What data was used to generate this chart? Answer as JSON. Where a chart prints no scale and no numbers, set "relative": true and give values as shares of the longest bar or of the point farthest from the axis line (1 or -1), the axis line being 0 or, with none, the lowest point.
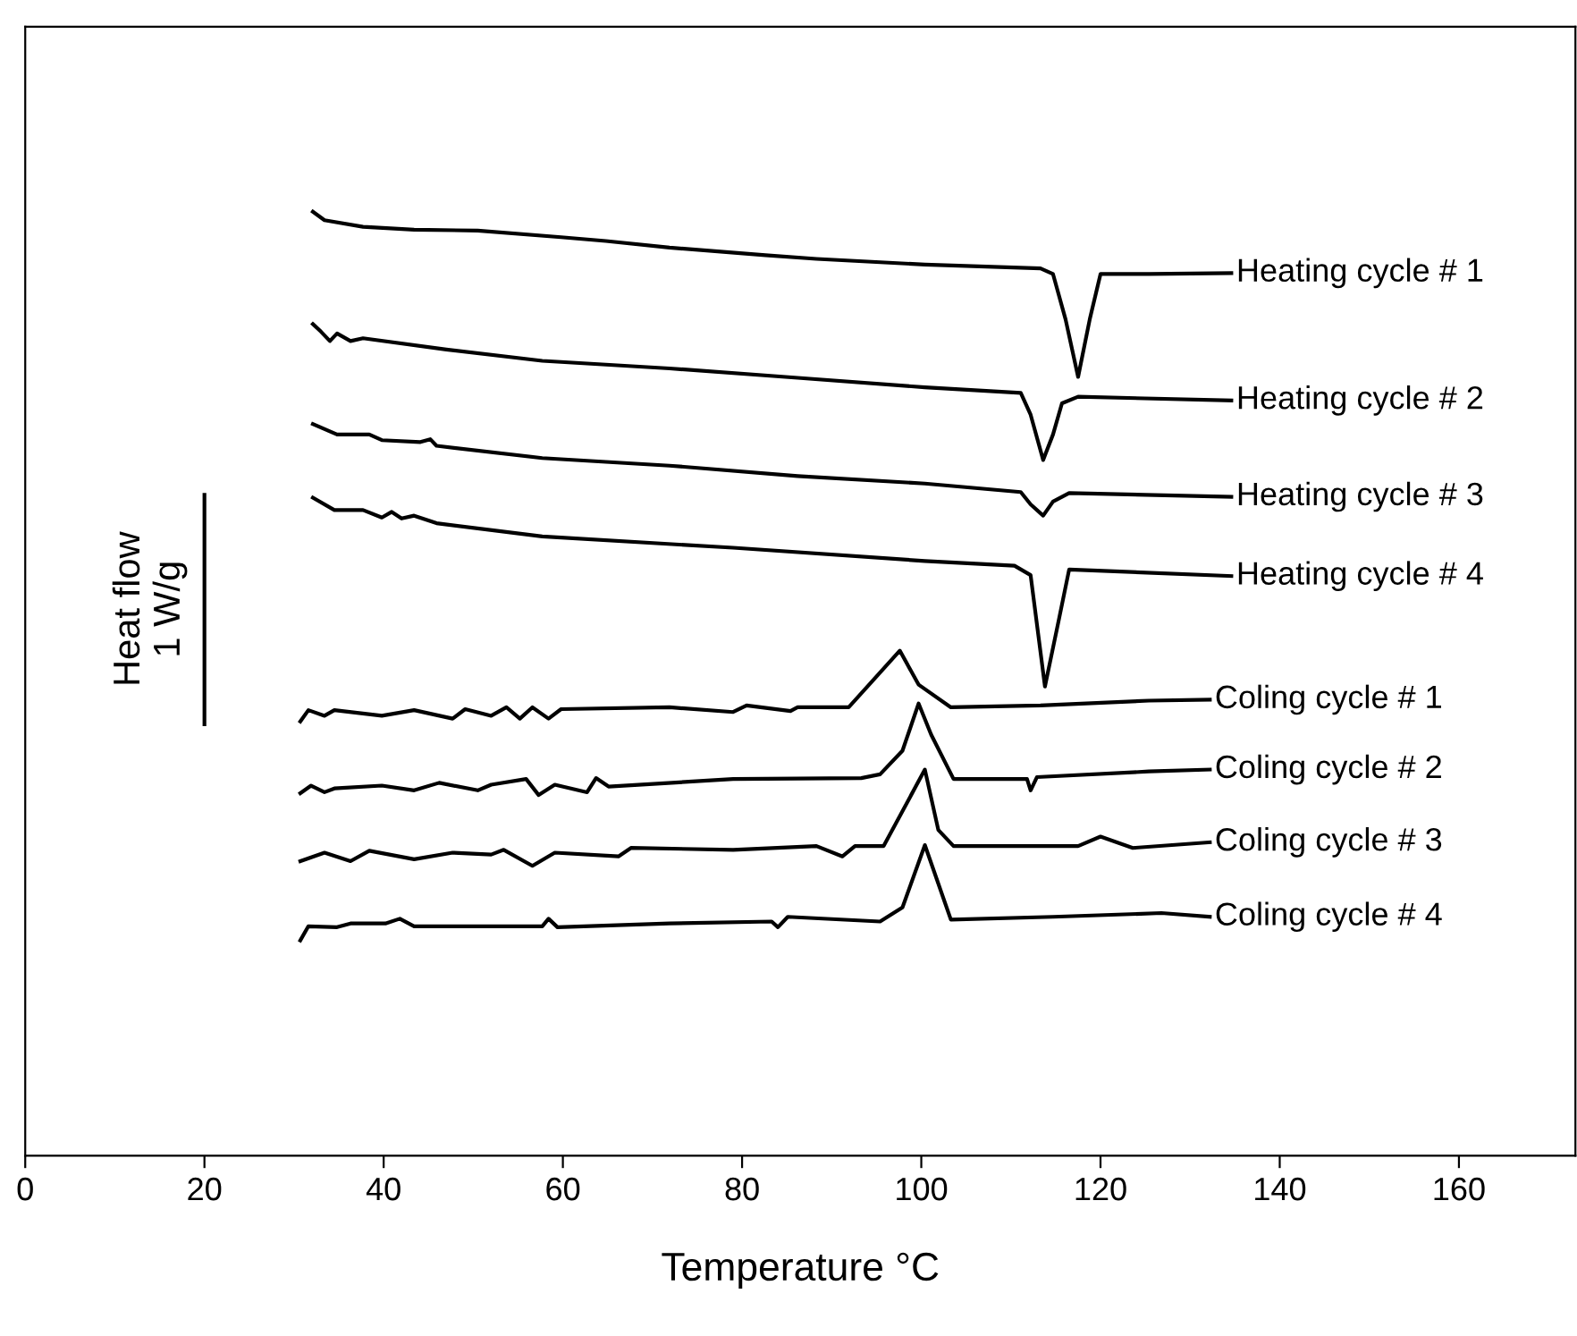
{
  "chart_data": {
    "type": "line",
    "xlabel": "Temperature °C",
    "relative": true,
    "xlim": [
      0,
      173
    ],
    "xticks": [
      0,
      20,
      40,
      60,
      80,
      100,
      120,
      140,
      160
    ],
    "tick_labels": "x",
    "grid": false,
    "legend": false,
    "annotations": [
      {
        "text": "Heat flow\n1 W/g",
        "x": 20,
        "y": 0.579
      }
    ],
    "series": [
      {
        "name": "Heating cycle # 1",
        "color": "#000000",
        "x": [
          32.1,
          33.4,
          37.7,
          43.4,
          50.5,
          59.8,
          64.8,
          71.9,
          82.6,
          88.3,
          100.4,
          113.3,
          114.7,
          116.1,
          117.5,
          118.8,
          120.0,
          125.4,
          134.6
        ],
        "values": [
          1.0,
          0.991,
          0.984,
          0.981,
          0.98,
          0.973,
          0.969,
          0.962,
          0.954,
          0.95,
          0.944,
          0.94,
          0.934,
          0.886,
          0.825,
          0.886,
          0.934,
          0.934,
          0.935
        ]
      },
      {
        "name": "Heating cycle # 2",
        "color": "#000000",
        "x": [
          32.1,
          33.0,
          34.0,
          34.8,
          36.3,
          37.7,
          47.0,
          57.7,
          71.9,
          86.2,
          100.4,
          111.1,
          112.2,
          113.6,
          114.7,
          115.7,
          117.5,
          134.6
        ],
        "values": [
          0.881,
          0.873,
          0.863,
          0.871,
          0.863,
          0.866,
          0.854,
          0.842,
          0.834,
          0.824,
          0.814,
          0.808,
          0.785,
          0.737,
          0.764,
          0.797,
          0.804,
          0.8
        ]
      },
      {
        "name": "Heating cycle # 3",
        "color": "#000000",
        "x": [
          32.1,
          34.8,
          38.4,
          39.8,
          44.1,
          45.2,
          45.9,
          57.7,
          71.9,
          86.2,
          100.4,
          111.1,
          112.2,
          113.6,
          114.7,
          116.5,
          134.6
        ],
        "values": [
          0.775,
          0.764,
          0.764,
          0.758,
          0.756,
          0.759,
          0.752,
          0.739,
          0.731,
          0.72,
          0.712,
          0.703,
          0.69,
          0.678,
          0.693,
          0.702,
          0.698
        ]
      },
      {
        "name": "Heating cycle # 4",
        "color": "#000000",
        "x": [
          32.1,
          34.5,
          37.7,
          39.8,
          40.9,
          42.0,
          43.4,
          45.9,
          57.7,
          79.0,
          100.4,
          110.4,
          112.2,
          113.8,
          115.4,
          116.5,
          134.6
        ],
        "values": [
          0.697,
          0.684,
          0.684,
          0.676,
          0.682,
          0.675,
          0.678,
          0.67,
          0.656,
          0.644,
          0.63,
          0.625,
          0.615,
          0.497,
          0.57,
          0.621,
          0.614
        ]
      },
      {
        "name": "Coling cycle # 1",
        "color": "#000000",
        "x": [
          30.7,
          31.6,
          33.4,
          34.5,
          39.8,
          43.4,
          47.7,
          49.1,
          52.0,
          53.7,
          55.2,
          56.6,
          58.4,
          59.8,
          71.9,
          79.0,
          80.5,
          85.4,
          86.2,
          91.9,
          97.6,
          99.7,
          103.3,
          113.3,
          125.4,
          132.2
        ],
        "values": [
          0.46,
          0.472,
          0.466,
          0.472,
          0.466,
          0.472,
          0.463,
          0.473,
          0.466,
          0.475,
          0.463,
          0.475,
          0.463,
          0.473,
          0.475,
          0.47,
          0.477,
          0.471,
          0.475,
          0.475,
          0.535,
          0.499,
          0.475,
          0.477,
          0.482,
          0.483
        ]
      },
      {
        "name": "Coling cycle # 2",
        "color": "#000000",
        "x": [
          30.7,
          31.9,
          33.4,
          34.5,
          39.8,
          43.4,
          46.2,
          50.5,
          52.0,
          55.9,
          57.3,
          59.1,
          62.7,
          63.7,
          65.1,
          79.0,
          93.3,
          95.4,
          97.9,
          99.7,
          101.1,
          103.6,
          111.8,
          112.2,
          112.9,
          125.4,
          132.2
        ],
        "values": [
          0.384,
          0.392,
          0.385,
          0.389,
          0.392,
          0.387,
          0.395,
          0.387,
          0.393,
          0.399,
          0.382,
          0.393,
          0.385,
          0.4,
          0.391,
          0.399,
          0.4,
          0.404,
          0.429,
          0.479,
          0.446,
          0.399,
          0.399,
          0.387,
          0.401,
          0.407,
          0.409
        ]
      },
      {
        "name": "Coling cycle # 3",
        "color": "#000000",
        "x": [
          30.7,
          33.4,
          36.3,
          38.4,
          43.4,
          47.7,
          52.0,
          53.4,
          56.6,
          59.1,
          66.2,
          67.6,
          79.0,
          88.3,
          91.2,
          92.6,
          95.8,
          100.4,
          101.9,
          103.6,
          117.5,
          120.0,
          123.6,
          132.2
        ],
        "values": [
          0.312,
          0.321,
          0.312,
          0.323,
          0.314,
          0.321,
          0.319,
          0.324,
          0.307,
          0.321,
          0.317,
          0.326,
          0.324,
          0.328,
          0.317,
          0.328,
          0.328,
          0.409,
          0.345,
          0.328,
          0.328,
          0.338,
          0.326,
          0.332
        ]
      },
      {
        "name": "Coling cycle # 4",
        "color": "#000000",
        "x": [
          30.7,
          31.6,
          34.8,
          36.3,
          40.2,
          41.8,
          43.4,
          49.1,
          57.7,
          58.4,
          59.4,
          71.9,
          83.3,
          84.0,
          85.1,
          95.4,
          97.9,
          100.4,
          103.3,
          114.7,
          126.8,
          132.2
        ],
        "values": [
          0.228,
          0.243,
          0.242,
          0.246,
          0.246,
          0.251,
          0.243,
          0.243,
          0.243,
          0.251,
          0.242,
          0.246,
          0.248,
          0.242,
          0.253,
          0.248,
          0.263,
          0.329,
          0.25,
          0.253,
          0.257,
          0.253
        ]
      },
      {
        "color": "#000000",
        "x": [
          20,
          20
        ],
        "values": [
          0.457,
          0.7
        ]
      }
    ]
  }
}
